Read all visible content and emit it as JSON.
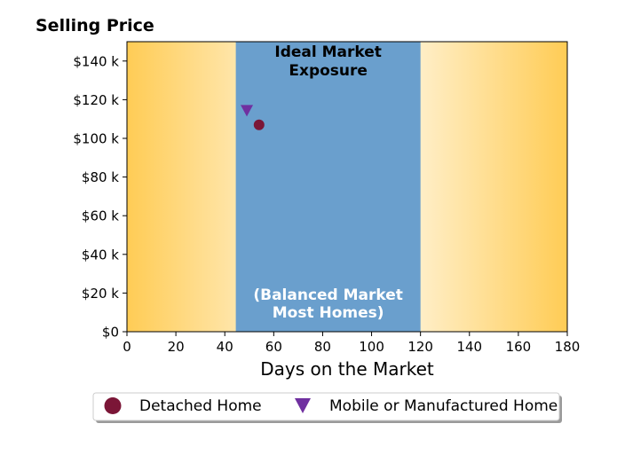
{
  "chart_data": {
    "type": "scatter",
    "title": "Selling Price",
    "xlabel": "Days on the Market",
    "ylabel": "",
    "xlim": [
      0,
      180
    ],
    "ylim": [
      0,
      150000
    ],
    "x_ticks": [
      0,
      20,
      40,
      60,
      80,
      100,
      120,
      140,
      160,
      180
    ],
    "x_tick_labels": [
      "0",
      "20",
      "40",
      "60",
      "80",
      "100",
      "120",
      "140",
      "160",
      "180"
    ],
    "y_ticks": [
      0,
      20000,
      40000,
      60000,
      80000,
      100000,
      120000,
      140000
    ],
    "y_tick_labels": [
      "$0",
      "$20 k",
      "$40 k",
      "$60 k",
      "$80 k",
      "$100 k",
      "$120 k",
      "$140 k"
    ],
    "grid": false,
    "legend_position": "bottom",
    "ideal_zone": {
      "x_range": [
        44.5,
        120
      ],
      "color": "#6a9fcd",
      "title_lines": [
        "Ideal Market",
        "Exposure"
      ],
      "subtitle_lines": [
        "(Balanced Market",
        "Most Homes)"
      ]
    },
    "background_gradient": {
      "edge_color": "#ffcc55",
      "center_color": "#ffffff"
    },
    "series": [
      {
        "name": "Detached Home",
        "marker": "circle",
        "color": "#7b1637",
        "points": [
          {
            "x": 54,
            "y": 107000
          }
        ]
      },
      {
        "name": "Mobile or Manufactured Home",
        "marker": "triangle-down",
        "color": "#7030a0",
        "points": [
          {
            "x": 49,
            "y": 114500
          }
        ]
      }
    ]
  }
}
